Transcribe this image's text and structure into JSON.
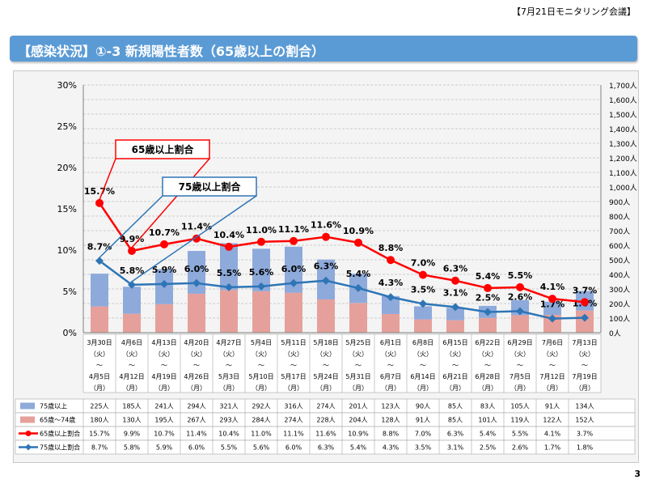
{
  "header_note": "【7月21日モニタリング会議】",
  "title": "【感染状況】①-3 新規陽性者数（65歳以上の割合）",
  "page_number": "3",
  "colors": {
    "blue_bar": "#8eaadb",
    "pink_bar": "#e6a09b",
    "red_line": "#ff0000",
    "blue_line": "#2e75b6",
    "title_bar": "#5b9bd5"
  },
  "chart_data": {
    "type": "bar",
    "categories": [
      {
        "start": "3月30日",
        "end": "4月5日"
      },
      {
        "start": "4月6日",
        "end": "4月12日"
      },
      {
        "start": "4月13日",
        "end": "4月19日"
      },
      {
        "start": "4月20日",
        "end": "4月26日"
      },
      {
        "start": "4月27日",
        "end": "5月3日"
      },
      {
        "start": "5月4日",
        "end": "5月10日"
      },
      {
        "start": "5月11日",
        "end": "5月17日"
      },
      {
        "start": "5月18日",
        "end": "5月24日"
      },
      {
        "start": "5月25日",
        "end": "5月31日"
      },
      {
        "start": "6月1日",
        "end": "6月7日"
      },
      {
        "start": "6月8日",
        "end": "6月14日"
      },
      {
        "start": "6月15日",
        "end": "6月21日"
      },
      {
        "start": "6月22日",
        "end": "6月28日"
      },
      {
        "start": "6月29日",
        "end": "7月5日"
      },
      {
        "start": "7月6日",
        "end": "7月12日"
      },
      {
        "start": "7月13日",
        "end": "7月19日"
      }
    ],
    "weekday_start": "（火）",
    "tilde": "～",
    "weekday_end": "（月）",
    "series": [
      {
        "name": "75歳以上",
        "kind": "bar",
        "axis": "right",
        "values": [
          225,
          185,
          241,
          294,
          321,
          292,
          316,
          274,
          201,
          123,
          90,
          85,
          83,
          105,
          91,
          134
        ],
        "labels": [
          "225人",
          "185人",
          "241人",
          "294人",
          "321人",
          "292人",
          "316人",
          "274人",
          "201人",
          "123人",
          "90人",
          "85人",
          "83人",
          "105人",
          "91人",
          "134人"
        ]
      },
      {
        "name": "65歳～74歳",
        "kind": "bar",
        "axis": "right",
        "values": [
          180,
          130,
          195,
          267,
          293,
          284,
          274,
          228,
          204,
          128,
          91,
          85,
          101,
          119,
          122,
          152
        ],
        "labels": [
          "180人",
          "130人",
          "195人",
          "267人",
          "293人",
          "284人",
          "274人",
          "228人",
          "204人",
          "128人",
          "91人",
          "85人",
          "101人",
          "119人",
          "122人",
          "152人"
        ]
      },
      {
        "name": "65歳以上割合",
        "kind": "line",
        "axis": "left",
        "values": [
          15.7,
          9.9,
          10.7,
          11.4,
          10.4,
          11.0,
          11.1,
          11.6,
          10.9,
          8.8,
          7.0,
          6.3,
          5.4,
          5.5,
          4.1,
          3.7
        ],
        "labels": [
          "15.7%",
          "9.9%",
          "10.7%",
          "11.4%",
          "10.4%",
          "11.0%",
          "11.1%",
          "11.6%",
          "10.9%",
          "8.8%",
          "7.0%",
          "6.3%",
          "5.4%",
          "5.5%",
          "4.1%",
          "3.7%"
        ]
      },
      {
        "name": "75歳以上割合",
        "kind": "line",
        "axis": "left",
        "values": [
          8.7,
          5.8,
          5.9,
          6.0,
          5.5,
          5.6,
          6.0,
          6.3,
          5.4,
          4.3,
          3.5,
          3.1,
          2.5,
          2.6,
          1.7,
          1.8
        ],
        "labels": [
          "8.7%",
          "5.8%",
          "5.9%",
          "6.0%",
          "5.5%",
          "5.6%",
          "6.0%",
          "6.3%",
          "5.4%",
          "4.3%",
          "3.5%",
          "3.1%",
          "2.5%",
          "2.6%",
          "1.7%",
          "1.8%"
        ]
      }
    ],
    "y_left": {
      "range": [
        0,
        30
      ],
      "ticks": [
        "0%",
        "5%",
        "10%",
        "15%",
        "20%",
        "25%",
        "30%"
      ]
    },
    "y_right": {
      "range": [
        0,
        1700
      ],
      "ticks": [
        "0人",
        "100人",
        "200人",
        "300人",
        "400人",
        "500人",
        "600人",
        "700人",
        "800人",
        "900人",
        "1,000人",
        "1,100人",
        "1,200人",
        "1,300人",
        "1,400人",
        "1,500人",
        "1,600人",
        "1,700人"
      ]
    },
    "callouts": [
      {
        "text": "65歳以上割合",
        "color": "red",
        "target_series": "65歳以上割合"
      },
      {
        "text": "75歳以上割合",
        "color": "blue",
        "target_series": "75歳以上割合"
      }
    ],
    "grid": true
  }
}
